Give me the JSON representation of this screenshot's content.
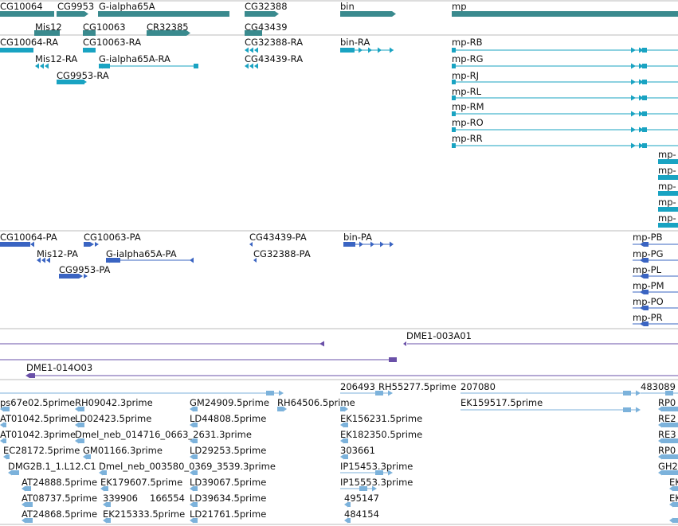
{
  "colors": {
    "gene": "#3a8a8e",
    "transcript": "#19a3c2",
    "protein": "#3a64c2",
    "clone": "#6a50a8",
    "est": "#7cb2db",
    "divider": "#bbbbbb"
  },
  "tracks": {
    "genes": [
      {
        "label": "CG10064",
        "style": "plain"
      },
      {
        "label": "CG9953",
        "style": "arrow"
      },
      {
        "label": "G-ialpha65A",
        "style": "plain"
      },
      {
        "label": "Mis12",
        "style": "plain"
      },
      {
        "label": "CG10063",
        "style": "plain"
      },
      {
        "label": "CR32385",
        "style": "arrow"
      },
      {
        "label": "CG32388",
        "style": "arrow"
      },
      {
        "label": "CG43439",
        "style": "plain"
      },
      {
        "label": "bin",
        "style": "arrow"
      },
      {
        "label": "mp",
        "style": "plain"
      }
    ],
    "transcripts": [
      {
        "label": "CG10064-RA",
        "style": "blocks"
      },
      {
        "label": "CG10063-RA",
        "style": "bar"
      },
      {
        "label": "CG32388-RA",
        "style": "arrows"
      },
      {
        "label": "bin-RA",
        "style": "gapped"
      },
      {
        "label": "mp-RB",
        "style": "long"
      },
      {
        "label": "Mis12-RA",
        "style": "arrows"
      },
      {
        "label": "G-ialpha65A-RA",
        "style": "gapped"
      },
      {
        "label": "CG43439-RA",
        "style": "arrows"
      },
      {
        "label": "mp-RG",
        "style": "long"
      },
      {
        "label": "CG9953-RA",
        "style": "bar"
      },
      {
        "label": "mp-RJ",
        "style": "long"
      },
      {
        "label": "mp-RL",
        "style": "long"
      },
      {
        "label": "mp-RM",
        "style": "long"
      },
      {
        "label": "mp-RO",
        "style": "long"
      },
      {
        "label": "mp-RR",
        "style": "long"
      },
      {
        "label": "mp-",
        "style": "blocks"
      },
      {
        "label": "mp-",
        "style": "blocks"
      },
      {
        "label": "mp-",
        "style": "blocks"
      },
      {
        "label": "mp-",
        "style": "blocks"
      },
      {
        "label": "mp-",
        "style": "blocks"
      }
    ],
    "proteins": [
      {
        "label": "CG10064-PA",
        "style": "blocks"
      },
      {
        "label": "CG10063-PA",
        "style": "bar"
      },
      {
        "label": "CG43439-PA",
        "style": "tick"
      },
      {
        "label": "bin-PA",
        "style": "gapped"
      },
      {
        "label": "mp-PB",
        "style": "long"
      },
      {
        "label": "Mis12-PA",
        "style": "arrows"
      },
      {
        "label": "G-ialpha65A-PA",
        "style": "gapped"
      },
      {
        "label": "CG32388-PA",
        "style": "tick"
      },
      {
        "label": "mp-PG",
        "style": "long"
      },
      {
        "label": "CG9953-PA",
        "style": "bar"
      },
      {
        "label": "mp-PL",
        "style": "long"
      },
      {
        "label": "mp-PM",
        "style": "long"
      },
      {
        "label": "mp-PO",
        "style": "long"
      },
      {
        "label": "mp-PR",
        "style": "long"
      }
    ],
    "clones": [
      {
        "label": "DME1-003A01"
      },
      {
        "label": "DME1-014O03"
      }
    ],
    "ests": [
      "ps67e02.5prime",
      "RH09042.3prime",
      "GM24909.5prime",
      "RH64506.5prime",
      "206493",
      "RH55277.5prime",
      "207080",
      "483089",
      "AT01042.5prime",
      "LD02423.5prime",
      "LD44808.5prime",
      "EK156231.5prime",
      "EK159517.5prime",
      "RP0",
      "AT01042.3prime",
      "Dmel_neb_014716_0663_2631.3prime",
      "EK182350.5prime",
      "RE2",
      "EC28172.5prime",
      "GM01166.3prime",
      "LD29253.5prime",
      "303661",
      "RE3",
      "DMG2B.1_1.L12.C1",
      "Dmel_neb_003580_0369_3539.3prime",
      "IP15453.3prime",
      "RP0",
      "AT24888.5prime",
      "EK179607.5prime",
      "LD39067.5prime",
      "IP15553.3prime",
      "GH2",
      "AT08737.5prime",
      "339906",
      "166554",
      "LD39634.5prime",
      "495147",
      "EK",
      "AT24868.5prime",
      "EK215333.5prime",
      "LD21761.5prime",
      "484154",
      "EK"
    ]
  }
}
